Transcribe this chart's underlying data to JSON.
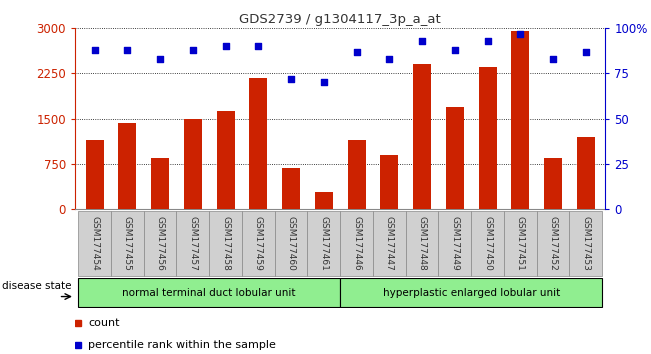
{
  "title": "GDS2739 / g1304117_3p_a_at",
  "samples": [
    "GSM177454",
    "GSM177455",
    "GSM177456",
    "GSM177457",
    "GSM177458",
    "GSM177459",
    "GSM177460",
    "GSM177461",
    "GSM177446",
    "GSM177447",
    "GSM177448",
    "GSM177449",
    "GSM177450",
    "GSM177451",
    "GSM177452",
    "GSM177453"
  ],
  "counts": [
    1150,
    1430,
    850,
    1500,
    1620,
    2180,
    680,
    280,
    1150,
    900,
    2400,
    1700,
    2350,
    2950,
    850,
    1200
  ],
  "percentiles": [
    88,
    88,
    83,
    88,
    90,
    90,
    72,
    70,
    87,
    83,
    93,
    88,
    93,
    97,
    83,
    87
  ],
  "bar_color": "#cc2200",
  "dot_color": "#0000cc",
  "ylim_left": [
    0,
    3000
  ],
  "ylim_right": [
    0,
    100
  ],
  "yticks_left": [
    0,
    750,
    1500,
    2250,
    3000
  ],
  "yticks_right": [
    0,
    25,
    50,
    75,
    100
  ],
  "group1_label": "normal terminal duct lobular unit",
  "group2_label": "hyperplastic enlarged lobular unit",
  "group1_count": 8,
  "group2_count": 8,
  "legend_count_label": "count",
  "legend_percentile_label": "percentile rank within the sample",
  "disease_state_label": "disease state",
  "group1_color": "#90ee90",
  "group2_color": "#90ee90",
  "left_axis_color": "#cc2200",
  "right_axis_color": "#0000cc"
}
